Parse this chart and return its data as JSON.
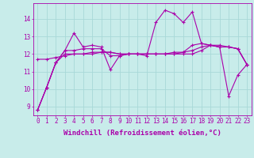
{
  "background_color": "#c8ecea",
  "grid_color": "#a8d8d8",
  "line_color": "#aa00aa",
  "markersize": 2.5,
  "linewidth": 0.8,
  "xlabel": "Windchill (Refroidissement éolien,°C)",
  "xlabel_fontsize": 6.5,
  "tick_fontsize": 5.5,
  "xlim": [
    -0.5,
    23.5
  ],
  "ylim": [
    8.5,
    14.9
  ],
  "yticks": [
    9,
    10,
    11,
    12,
    13,
    14
  ],
  "xticks": [
    0,
    1,
    2,
    3,
    4,
    5,
    6,
    7,
    8,
    9,
    10,
    11,
    12,
    13,
    14,
    15,
    16,
    17,
    18,
    19,
    20,
    21,
    22,
    23
  ],
  "series": [
    [
      8.8,
      10.1,
      11.5,
      12.2,
      13.2,
      12.4,
      12.5,
      12.4,
      11.1,
      11.9,
      12.0,
      12.0,
      11.9,
      13.8,
      14.5,
      14.3,
      13.8,
      14.4,
      12.6,
      12.5,
      12.4,
      9.6,
      10.8,
      11.4
    ],
    [
      8.8,
      10.1,
      11.5,
      12.2,
      12.2,
      12.3,
      12.3,
      12.3,
      11.9,
      11.9,
      12.0,
      12.0,
      12.0,
      12.0,
      12.0,
      12.1,
      12.1,
      12.5,
      12.6,
      12.5,
      12.4,
      12.4,
      12.3,
      11.4
    ],
    [
      8.8,
      10.1,
      11.5,
      12.0,
      12.0,
      12.0,
      12.1,
      12.1,
      12.1,
      12.0,
      12.0,
      12.0,
      12.0,
      12.0,
      12.0,
      12.0,
      12.0,
      12.0,
      12.2,
      12.5,
      12.4,
      12.4,
      12.3,
      11.4
    ],
    [
      11.7,
      11.7,
      11.8,
      11.9,
      12.0,
      12.0,
      12.0,
      12.1,
      12.1,
      12.0,
      12.0,
      12.0,
      12.0,
      12.0,
      12.0,
      12.0,
      12.1,
      12.2,
      12.4,
      12.5,
      12.5,
      12.4,
      12.3,
      11.4
    ]
  ]
}
